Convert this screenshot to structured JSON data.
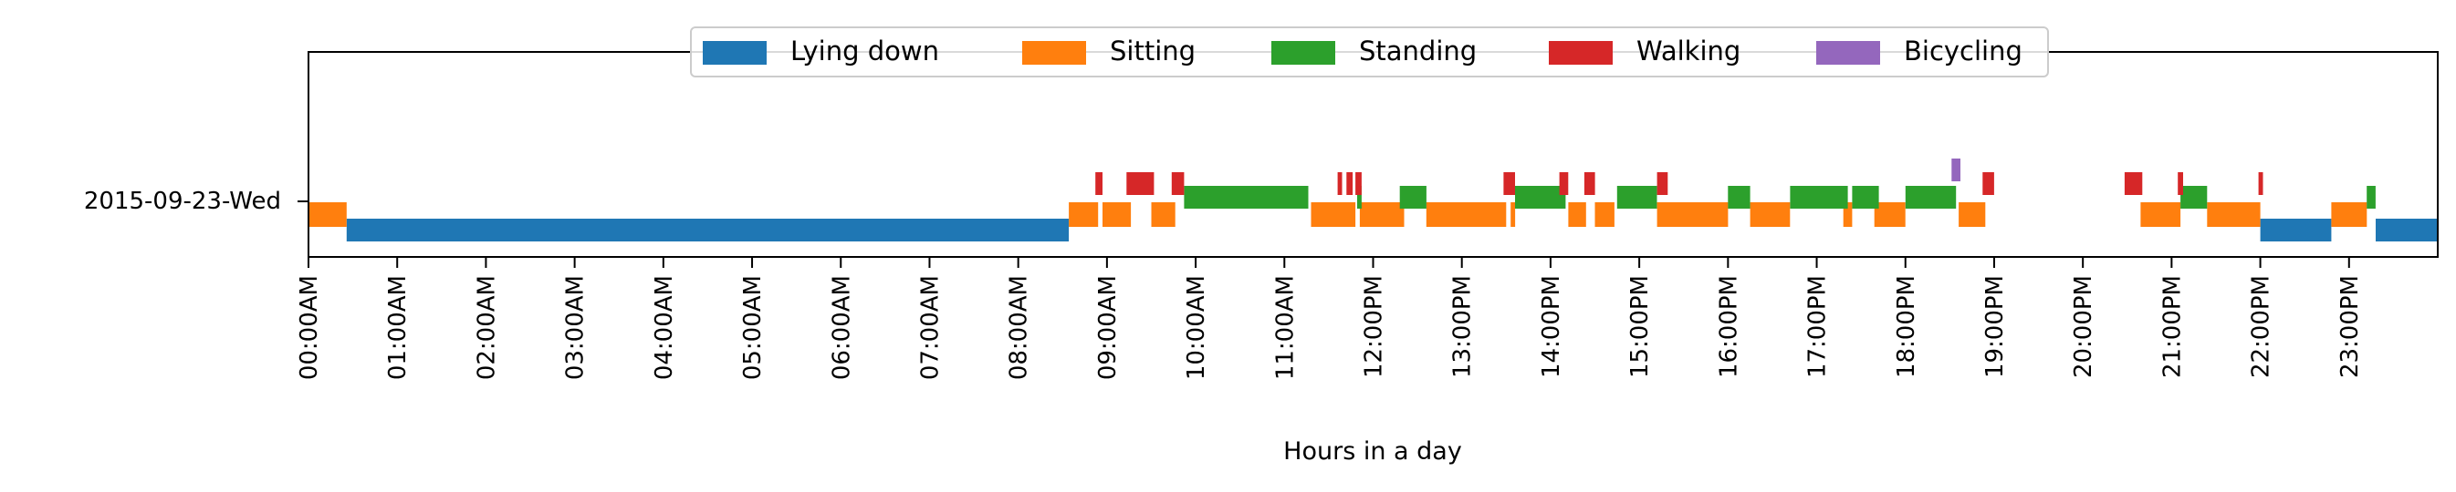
{
  "chart_data": {
    "type": "timeline",
    "xlabel": "Hours in a day",
    "xlim": [
      0,
      24
    ],
    "day_label": "2015-09-23-Wed",
    "xticks": [
      "00:00AM",
      "01:00AM",
      "02:00AM",
      "03:00AM",
      "04:00AM",
      "05:00AM",
      "06:00AM",
      "07:00AM",
      "08:00AM",
      "09:00AM",
      "10:00AM",
      "11:00AM",
      "12:00PM",
      "13:00PM",
      "14:00PM",
      "15:00PM",
      "16:00PM",
      "17:00PM",
      "18:00PM",
      "19:00PM",
      "20:00PM",
      "21:00PM",
      "22:00PM",
      "23:00PM"
    ],
    "legend_position": "top-center",
    "series": [
      {
        "name": "Lying down",
        "color": "#1f77b4",
        "level": 0,
        "intervals": [
          [
            0.43,
            8.57
          ],
          [
            22.0,
            22.8
          ],
          [
            23.3,
            24.0
          ]
        ]
      },
      {
        "name": "Sitting",
        "color": "#ff7f0e",
        "level": 1,
        "intervals": [
          [
            0.0,
            0.43
          ],
          [
            8.57,
            8.9
          ],
          [
            8.95,
            9.27
          ],
          [
            9.5,
            9.77
          ],
          [
            11.3,
            11.8
          ],
          [
            11.85,
            12.35
          ],
          [
            12.6,
            13.5
          ],
          [
            13.55,
            13.6
          ],
          [
            14.2,
            14.4
          ],
          [
            14.5,
            14.72
          ],
          [
            15.2,
            16.0
          ],
          [
            16.25,
            16.7
          ],
          [
            17.3,
            17.4
          ],
          [
            17.65,
            18.0
          ],
          [
            18.6,
            18.9
          ],
          [
            20.65,
            21.1
          ],
          [
            21.4,
            22.0
          ],
          [
            22.8,
            23.2
          ]
        ]
      },
      {
        "name": "Standing",
        "color": "#2ca02c",
        "level": 2,
        "intervals": [
          [
            9.87,
            11.27
          ],
          [
            11.82,
            11.87
          ],
          [
            12.3,
            12.6
          ],
          [
            13.6,
            14.17
          ],
          [
            14.75,
            15.2
          ],
          [
            16.0,
            16.25
          ],
          [
            16.7,
            17.35
          ],
          [
            17.4,
            17.7
          ],
          [
            18.0,
            18.57
          ],
          [
            21.1,
            21.4
          ],
          [
            23.2,
            23.3
          ]
        ]
      },
      {
        "name": "Walking",
        "color": "#d62728",
        "level": 3,
        "intervals": [
          [
            8.87,
            8.95
          ],
          [
            9.22,
            9.53
          ],
          [
            9.73,
            9.87
          ],
          [
            11.6,
            11.65
          ],
          [
            11.7,
            11.77
          ],
          [
            11.8,
            11.87
          ],
          [
            13.47,
            13.6
          ],
          [
            14.1,
            14.2
          ],
          [
            14.38,
            14.5
          ],
          [
            15.2,
            15.32
          ],
          [
            18.87,
            19.0
          ],
          [
            20.47,
            20.67
          ],
          [
            21.07,
            21.13
          ],
          [
            21.98,
            22.03
          ]
        ]
      },
      {
        "name": "Bicycling",
        "color": "#9467bd",
        "level": 4,
        "intervals": [
          [
            18.52,
            18.62
          ]
        ]
      }
    ]
  }
}
